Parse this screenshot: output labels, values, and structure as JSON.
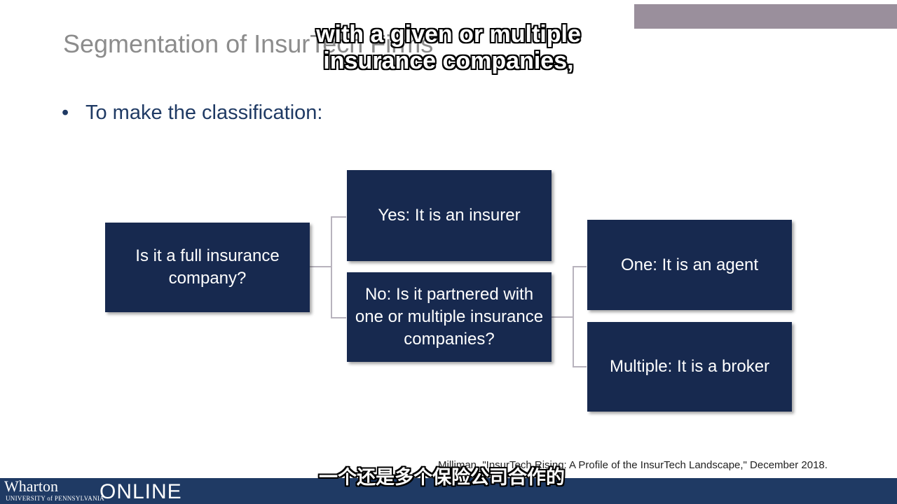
{
  "slide": {
    "title": "Segmentation of InsurTech Firms",
    "bullet": "To make the classification:"
  },
  "captions": {
    "english": "with a given or multiple insurance companies,",
    "chinese": "一个还是多个保险公司合作的"
  },
  "diagram": {
    "root": "Is it a full insurance company?",
    "yes": "Yes: It is an insurer",
    "no": "No: Is it partnered with one or multiple insurance companies?",
    "one": "One: It is an agent",
    "multiple": "Multiple: It is a broker"
  },
  "footer": {
    "citation": "Milliman, \"InsurTech Rising: A Profile of the InsurTech Landscape,\" December 2018.",
    "logo_name": "Wharton",
    "logo_sub": "UNIVERSITY of PENNSYLVANIA",
    "logo_online": "ONLINE"
  },
  "colors": {
    "box": "#17294f",
    "footer": "#1f3a64",
    "title": "#8c8c8c",
    "accent_bar": "#9a8f9c"
  }
}
